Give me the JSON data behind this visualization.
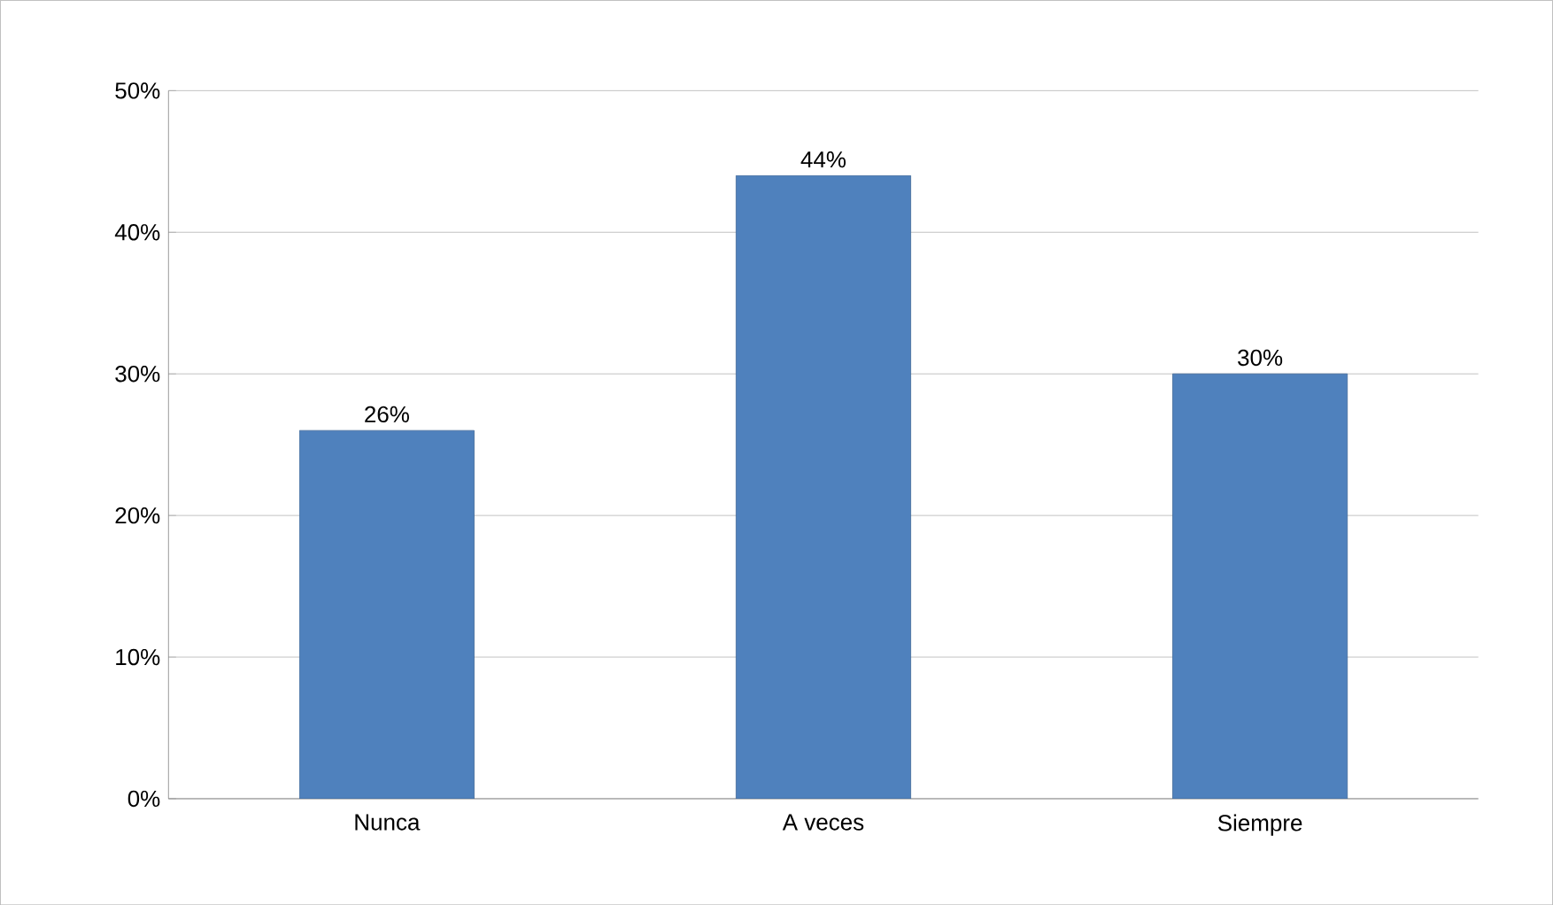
{
  "chart_data": {
    "type": "bar",
    "categories": [
      "Nunca",
      "A veces",
      "Siempre"
    ],
    "values": [
      26,
      44,
      30
    ],
    "value_labels": [
      "26%",
      "44%",
      "30%"
    ],
    "color": "#4f81bd",
    "ylim": [
      0,
      50
    ],
    "yticks": [
      {
        "value": 0,
        "label": "0%"
      },
      {
        "value": 10,
        "label": "10%"
      },
      {
        "value": 20,
        "label": "20%"
      },
      {
        "value": 30,
        "label": "30%"
      },
      {
        "value": 40,
        "label": "40%"
      },
      {
        "value": 50,
        "label": "50%"
      }
    ],
    "grid": "y"
  }
}
